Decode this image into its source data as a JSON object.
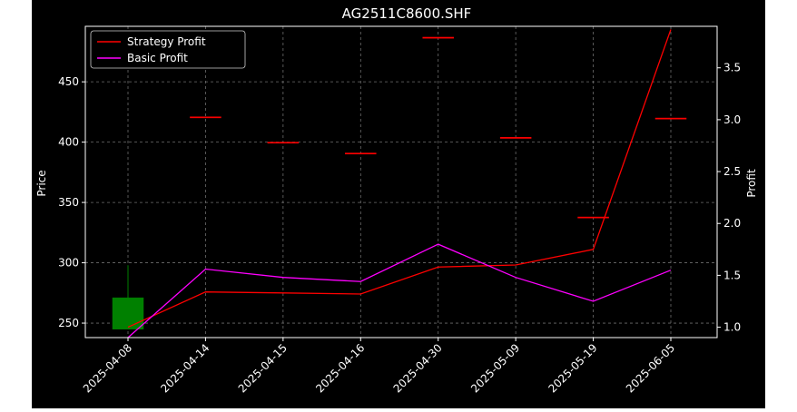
{
  "chart_data": {
    "type": "candlestick+line",
    "title": "AG2511C8600.SHF",
    "ylabel": "Price",
    "y2label": "Profit",
    "categories": [
      "2025-04-08",
      "2025-04-14",
      "2025-04-15",
      "2025-04-16",
      "2025-04-30",
      "2025-05-09",
      "2025-05-19",
      "2025-06-05"
    ],
    "ylim": [
      238,
      496
    ],
    "y2lim": [
      0.9,
      3.9
    ],
    "yticks": [
      250,
      300,
      350,
      400,
      450
    ],
    "y2ticks": [
      1.0,
      1.5,
      2.0,
      2.5,
      3.0,
      3.5
    ],
    "grid": true,
    "legend_position": "top-left",
    "candles": [
      {
        "date": "2025-04-08",
        "open": 245,
        "high": 298,
        "low": 245,
        "close": 271,
        "color": "#008000"
      },
      {
        "date": "2025-04-14",
        "open": 421,
        "high": 421,
        "low": 421,
        "close": 421,
        "color": "#ff0000"
      },
      {
        "date": "2025-04-15",
        "open": 400,
        "high": 400,
        "low": 400,
        "close": 400,
        "color": "#ff0000"
      },
      {
        "date": "2025-04-16",
        "open": 391,
        "high": 391,
        "low": 391,
        "close": 391,
        "color": "#ff0000"
      },
      {
        "date": "2025-04-30",
        "open": 487,
        "high": 487,
        "low": 487,
        "close": 487,
        "color": "#ff0000"
      },
      {
        "date": "2025-05-09",
        "open": 404,
        "high": 404,
        "low": 404,
        "close": 404,
        "color": "#ff0000"
      },
      {
        "date": "2025-05-19",
        "open": 338,
        "high": 338,
        "low": 338,
        "close": 338,
        "color": "#ff0000"
      },
      {
        "date": "2025-06-05",
        "open": 420,
        "high": 420,
        "low": 420,
        "close": 420,
        "color": "#ff0000"
      }
    ],
    "series": [
      {
        "name": "Strategy Profit",
        "color": "#ff0000",
        "axis": "right",
        "values": [
          1.0,
          1.34,
          1.33,
          1.32,
          1.58,
          1.6,
          1.75,
          3.87
        ]
      },
      {
        "name": "Basic Profit",
        "color": "#ff00ff",
        "axis": "right",
        "values": [
          0.9,
          1.56,
          1.48,
          1.44,
          1.8,
          1.48,
          1.25,
          1.55
        ]
      }
    ]
  }
}
